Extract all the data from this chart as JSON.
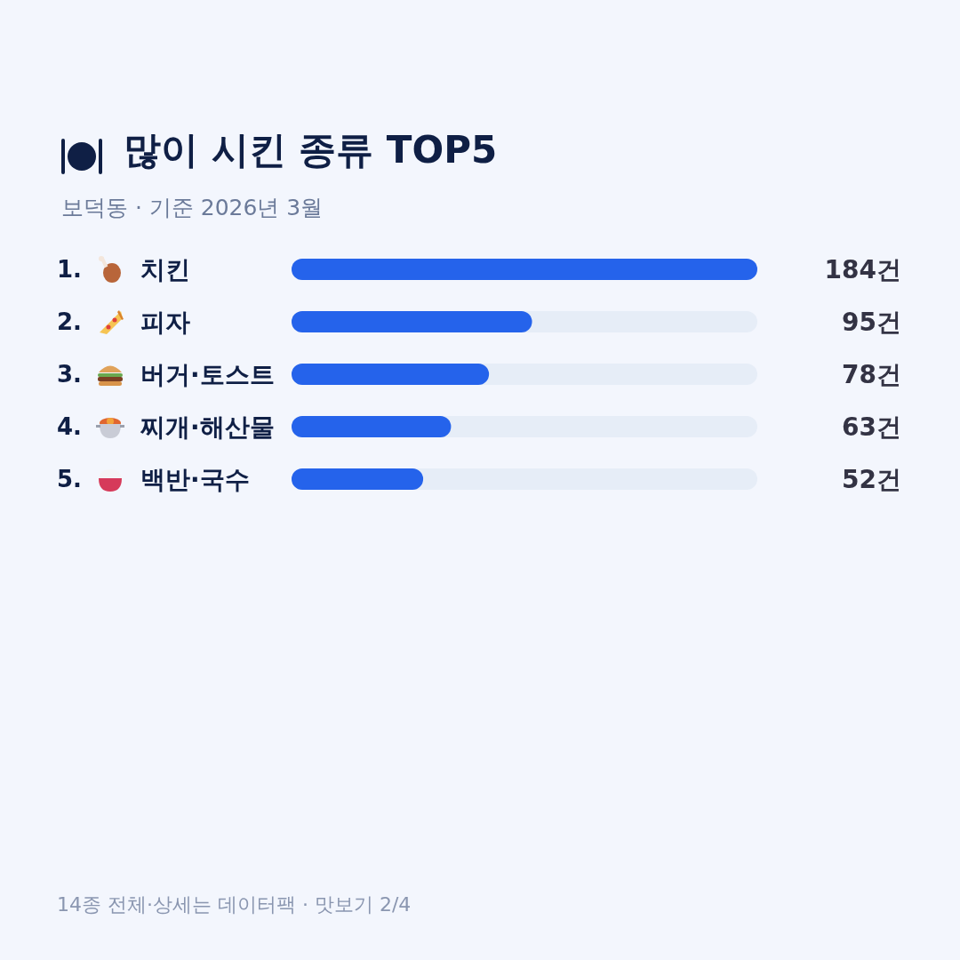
{
  "chart_data": {
    "type": "bar",
    "orientation": "horizontal",
    "title": "많이 시킨 종류 TOP5",
    "subtitle": "보덕동 · 기준 2026년 3월",
    "categories": [
      "1. 치킨",
      "2. 피자",
      "3. 버거·토스트",
      "4. 찌개·해산물",
      "5. 백반·국수"
    ],
    "values": [
      184,
      95,
      78,
      63,
      52
    ],
    "value_labels": [
      "184건",
      "95건",
      "78건",
      "63건",
      "52건"
    ],
    "color": "#2563eb",
    "annotations": [
      "14종 전체·상세는 데이터팩 · 맛보기 2/4"
    ]
  }
}
